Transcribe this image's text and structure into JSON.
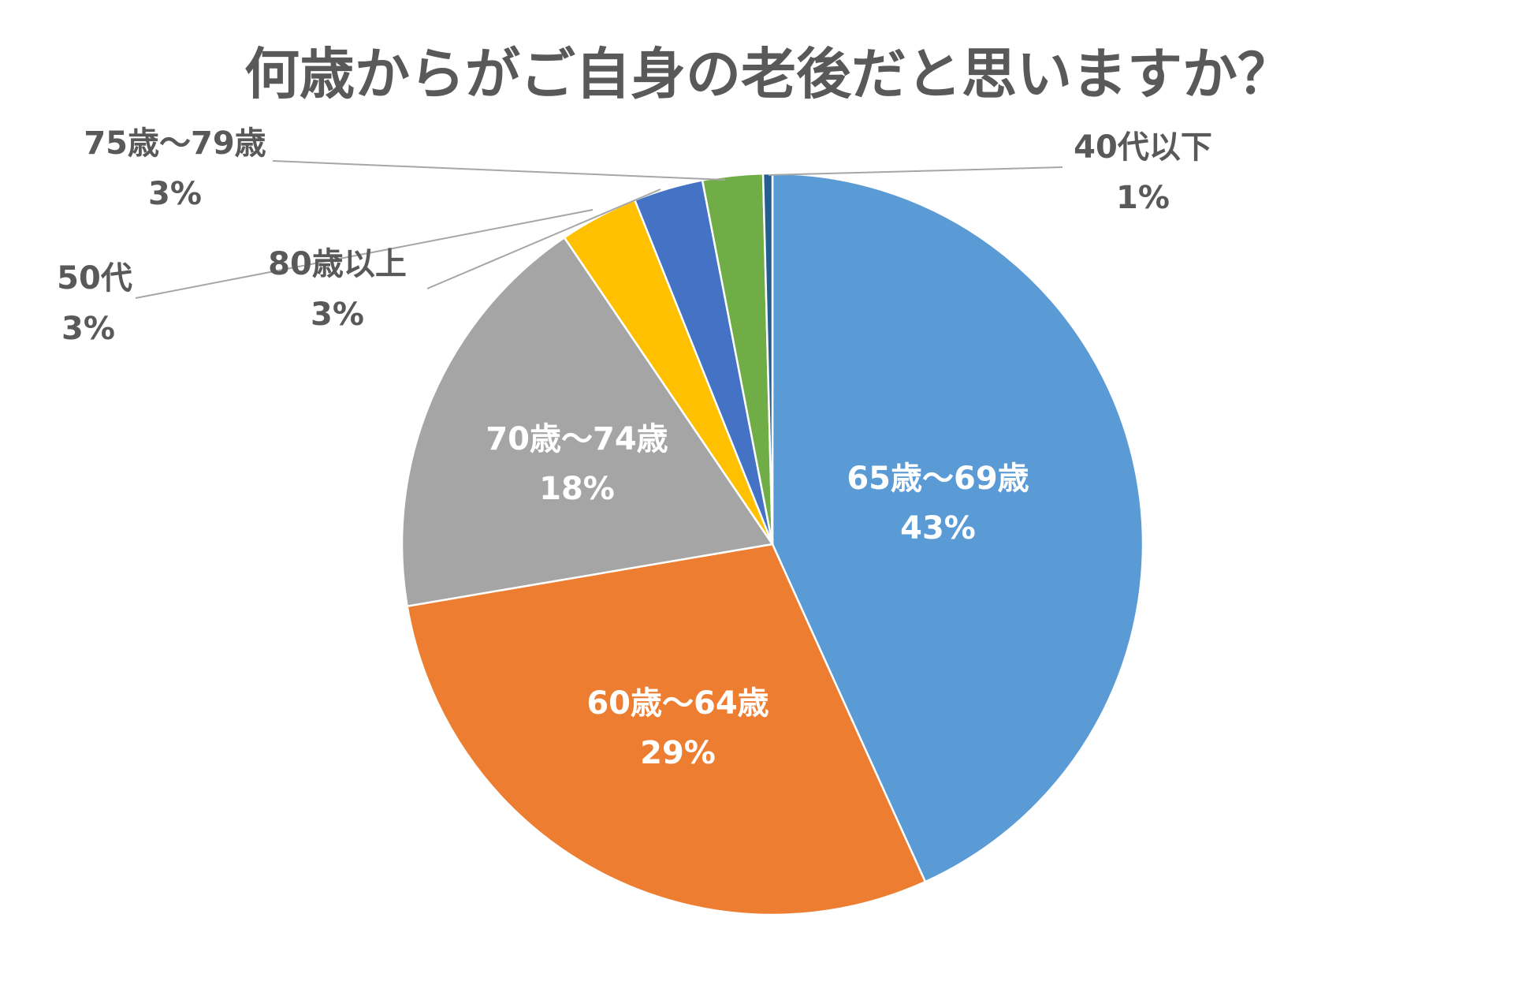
{
  "chart_data": {
    "type": "pie",
    "title": "何歳からがご自身の老後だと思いますか？",
    "slices": [
      {
        "label": "65歳～69歳",
        "pct_text": "43%",
        "value": 42.8,
        "color": "#5B9BD5",
        "label_inside": true
      },
      {
        "label": "60歳～64歳",
        "pct_text": "29%",
        "value": 28.8,
        "color": "#ED7D31",
        "label_inside": true
      },
      {
        "label": "70歳～74歳",
        "pct_text": "18%",
        "value": 18.0,
        "color": "#A5A5A5",
        "label_inside": true
      },
      {
        "label": "50代",
        "pct_text": "3%",
        "value": 3.4,
        "color": "#FFC000",
        "label_inside": false
      },
      {
        "label": "80歳以上",
        "pct_text": "3%",
        "value": 3.0,
        "color": "#4472C4",
        "label_inside": false
      },
      {
        "label": "75歳～79歳",
        "pct_text": "3%",
        "value": 2.6,
        "color": "#70AD47",
        "label_inside": false
      },
      {
        "label": "40代以下",
        "pct_text": "1%",
        "value": 0.4,
        "color": "#255E91",
        "label_inside": false
      }
    ],
    "start_angle": "12 o'clock",
    "direction": "clockwise",
    "legend": "none"
  }
}
